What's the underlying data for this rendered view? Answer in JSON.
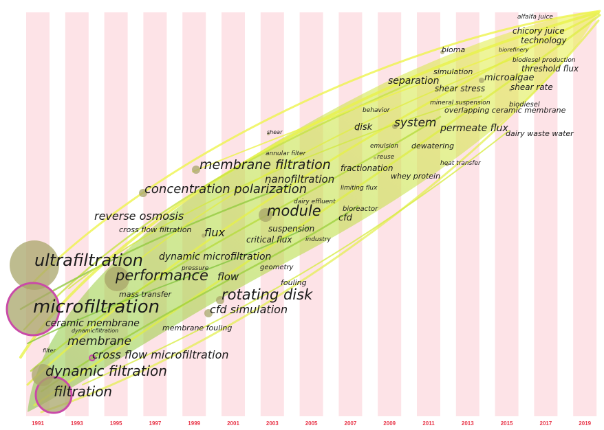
{
  "timeline": {
    "years": [
      "1991",
      "1993",
      "1995",
      "1997",
      "1999",
      "2001",
      "2003",
      "2005",
      "2007",
      "2009",
      "2011",
      "2013",
      "2015",
      "2017",
      "2019"
    ]
  },
  "keywords": [
    {
      "id": "k1",
      "label": "alfalfa juice",
      "size": 9
    },
    {
      "id": "k2",
      "label": "chicory juice",
      "size": 12
    },
    {
      "id": "k3",
      "label": "technology",
      "size": 12
    },
    {
      "id": "k4",
      "label": "bioma",
      "size": 11
    },
    {
      "id": "k5",
      "label": "biorefinery",
      "size": 8
    },
    {
      "id": "k6",
      "label": "biodiesel production",
      "size": 9
    },
    {
      "id": "k7",
      "label": "threshold flux",
      "size": 12
    },
    {
      "id": "k8",
      "label": "simulation",
      "size": 11
    },
    {
      "id": "k9",
      "label": "microalgae",
      "size": 13
    },
    {
      "id": "k10",
      "label": "separation",
      "size": 14
    },
    {
      "id": "k11",
      "label": "shear stress",
      "size": 12
    },
    {
      "id": "k12",
      "label": "shear rate",
      "size": 12
    },
    {
      "id": "k13",
      "label": "mineral suspension",
      "size": 9
    },
    {
      "id": "k14",
      "label": "biodiesel",
      "size": 10
    },
    {
      "id": "k15",
      "label": "overlapping ceramic membrane",
      "size": 11
    },
    {
      "id": "k16",
      "label": "behavior",
      "size": 9
    },
    {
      "id": "k17",
      "label": "disk",
      "size": 13
    },
    {
      "id": "k18",
      "label": "system",
      "size": 17
    },
    {
      "id": "k19",
      "label": "permeate flux",
      "size": 14
    },
    {
      "id": "k20",
      "label": "dairy waste water",
      "size": 11
    },
    {
      "id": "k21",
      "label": "shear",
      "size": 8
    },
    {
      "id": "k22",
      "label": "emulsion",
      "size": 9
    },
    {
      "id": "k23",
      "label": "dewatering",
      "size": 11
    },
    {
      "id": "k24",
      "label": "annular filter",
      "size": 9
    },
    {
      "id": "k25",
      "label": "reuse",
      "size": 9
    },
    {
      "id": "k26",
      "label": "heat transfer",
      "size": 9
    },
    {
      "id": "k27",
      "label": "membrane filtration",
      "size": 19
    },
    {
      "id": "k28",
      "label": "fractionation",
      "size": 12
    },
    {
      "id": "k29",
      "label": "nanofiltration",
      "size": 15
    },
    {
      "id": "k30",
      "label": "whey protein",
      "size": 11
    },
    {
      "id": "k31",
      "label": "concentration polarization",
      "size": 18
    },
    {
      "id": "k32",
      "label": "limiting flux",
      "size": 9
    },
    {
      "id": "k33",
      "label": "dairy effluent",
      "size": 9
    },
    {
      "id": "k34",
      "label": "module",
      "size": 21
    },
    {
      "id": "k35",
      "label": "bioreactor",
      "size": 10
    },
    {
      "id": "k36",
      "label": "cfd",
      "size": 13
    },
    {
      "id": "k37",
      "label": "reverse osmosis",
      "size": 16
    },
    {
      "id": "k38",
      "label": "cross flow filtration",
      "size": 11
    },
    {
      "id": "k39",
      "label": "flux",
      "size": 16
    },
    {
      "id": "k40",
      "label": "suspension",
      "size": 12
    },
    {
      "id": "k41",
      "label": "critical flux",
      "size": 12
    },
    {
      "id": "k42",
      "label": "industry",
      "size": 9
    },
    {
      "id": "k43",
      "label": "dynamic microfiltration",
      "size": 14
    },
    {
      "id": "k44",
      "label": "ultrafiltration",
      "size": 24
    },
    {
      "id": "k45",
      "label": "pressure",
      "size": 9
    },
    {
      "id": "k46",
      "label": "geometry",
      "size": 10
    },
    {
      "id": "k47",
      "label": "performance",
      "size": 21
    },
    {
      "id": "k48",
      "label": "flow",
      "size": 15
    },
    {
      "id": "k49",
      "label": "fouling",
      "size": 11
    },
    {
      "id": "k50",
      "label": "rotating disk",
      "size": 21
    },
    {
      "id": "k51",
      "label": "mass transfer",
      "size": 11
    },
    {
      "id": "k52",
      "label": "microfiltration",
      "size": 26
    },
    {
      "id": "k53",
      "label": "cfd simulation",
      "size": 16
    },
    {
      "id": "k54",
      "label": "ceramic membrane",
      "size": 14
    },
    {
      "id": "k55",
      "label": "dynamicfiltration",
      "size": 8
    },
    {
      "id": "k56",
      "label": "membrane fouling",
      "size": 11
    },
    {
      "id": "k57",
      "label": "membrane",
      "size": 17
    },
    {
      "id": "k58",
      "label": "filter",
      "size": 8
    },
    {
      "id": "k59",
      "label": "cross flow microfiltration",
      "size": 16
    },
    {
      "id": "k60",
      "label": "dynamic filtration",
      "size": 20
    },
    {
      "id": "k61",
      "label": "filtration",
      "size": 20
    }
  ],
  "colors": {
    "stripe": "#fde3e7",
    "year_label": "#e8374a",
    "link_yellow": "#e9f24a",
    "link_green": "#8cc63f",
    "node_fill": "#a8a66a",
    "node_ring": "#c94aa8"
  }
}
